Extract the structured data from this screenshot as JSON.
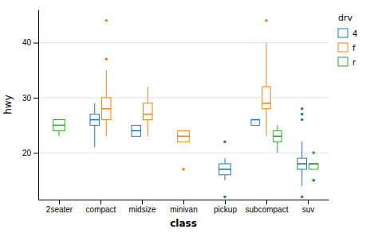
{
  "chart_data": {
    "type": "box",
    "xlabel": "class",
    "ylabel": "hwy",
    "legend_title": "drv",
    "legend": "right",
    "grid": true,
    "categories": [
      "2seater",
      "compact",
      "midsize",
      "minivan",
      "pickup",
      "subcompact",
      "suv"
    ],
    "series": [
      {
        "name": "4",
        "values": [
          null,
          {
            "q1": 25,
            "median": 26,
            "q3": 27,
            "whisker_low": 21,
            "whisker_high": 29,
            "outliers": []
          },
          {
            "q1": 23,
            "median": 24,
            "q3": 25,
            "whisker_low": 23,
            "whisker_high": 25,
            "outliers": []
          },
          null,
          {
            "q1": 16,
            "median": 17,
            "q3": 18,
            "whisker_low": 15,
            "whisker_high": 19,
            "outliers": [
              12,
              22
            ]
          },
          {
            "q1": 25,
            "median": 26,
            "q3": 26,
            "whisker_low": 26,
            "whisker_high": 26,
            "outliers": []
          },
          {
            "q1": 17,
            "median": 18,
            "q3": 19,
            "whisker_low": 14,
            "whisker_high": 22,
            "outliers": [
              12,
              26,
              27,
              28
            ]
          }
        ]
      },
      {
        "name": "f",
        "values": [
          null,
          {
            "q1": 26,
            "median": 28,
            "q3": 30,
            "whisker_low": 23,
            "whisker_high": 35,
            "outliers": [
              37,
              44
            ]
          },
          {
            "q1": 26,
            "median": 27,
            "q3": 29,
            "whisker_low": 23,
            "whisker_high": 32,
            "outliers": []
          },
          {
            "q1": 22,
            "median": 23,
            "q3": 24,
            "whisker_low": 22,
            "whisker_high": 24,
            "outliers": [
              17
            ]
          },
          null,
          {
            "q1": 28,
            "median": 29,
            "q3": 32,
            "whisker_low": 23,
            "whisker_high": 40,
            "outliers": [
              44
            ]
          },
          null
        ]
      },
      {
        "name": "r",
        "values": [
          {
            "q1": 24,
            "median": 25,
            "q3": 26,
            "whisker_low": 23,
            "whisker_high": 26,
            "outliers": []
          },
          null,
          null,
          null,
          null,
          {
            "q1": 22,
            "median": 23,
            "q3": 24,
            "whisker_low": 20,
            "whisker_high": 25,
            "outliers": []
          },
          {
            "q1": 17,
            "median": 18,
            "q3": 18,
            "whisker_low": 17,
            "whisker_high": 18,
            "outliers": [
              20,
              15,
              15
            ]
          }
        ]
      }
    ],
    "ylim": [
      11.5,
      46
    ],
    "yticks": [
      20,
      30,
      40
    ]
  }
}
